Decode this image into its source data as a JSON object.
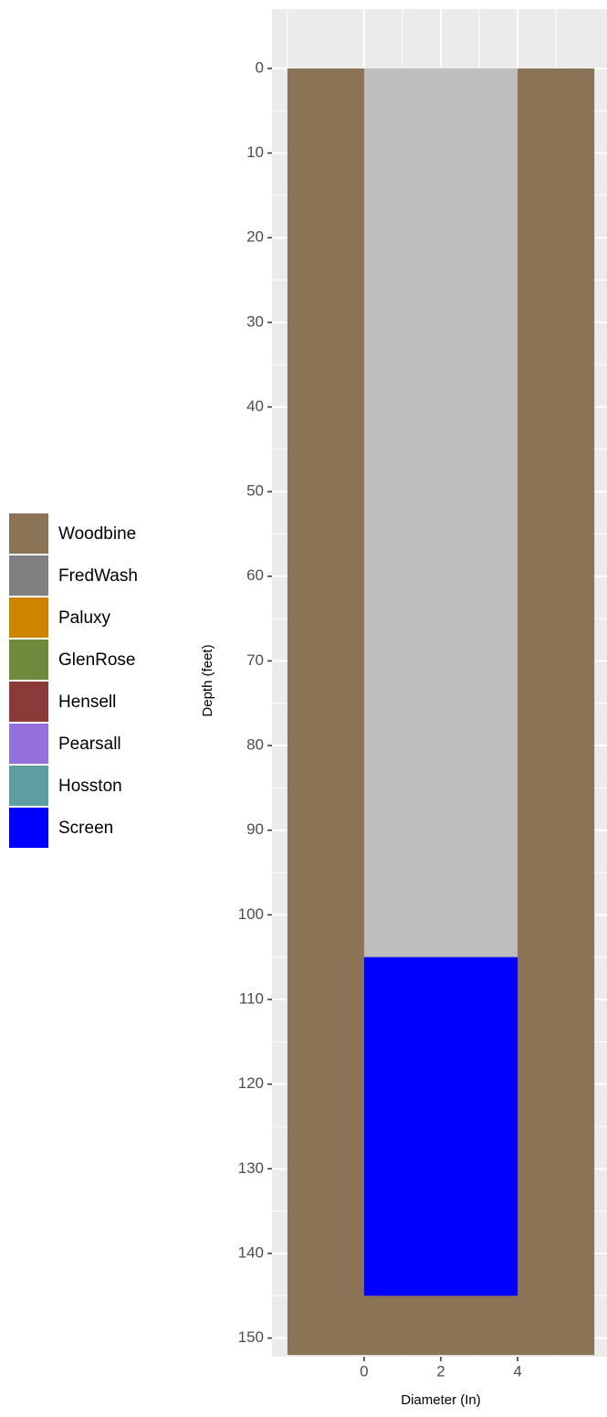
{
  "chart_data": {
    "type": "rect",
    "x_label": "Diameter (In)",
    "y_label": "Depth (feet)",
    "xlim": [
      -2.4,
      6.33
    ],
    "xticks": [
      0,
      2,
      4
    ],
    "xminor": [
      -2,
      1,
      3,
      5
    ],
    "ylim": [
      -7,
      152.2
    ],
    "y_reversed": true,
    "yticks": [
      0,
      10,
      20,
      30,
      40,
      50,
      60,
      70,
      80,
      90,
      100,
      110,
      120,
      130,
      140,
      150
    ],
    "yminor": [
      5,
      15,
      25,
      35,
      45,
      55,
      65,
      75,
      85,
      95,
      105,
      115,
      125,
      135,
      145
    ],
    "grid": true,
    "rects": [
      {
        "xmin": -2,
        "xmax": 6,
        "ymin": 0,
        "ymax": 152,
        "color": "#8B7355"
      },
      {
        "xmin": 0,
        "xmax": 4,
        "ymin": 0,
        "ymax": 105,
        "color": "#BEBEBE"
      },
      {
        "xmin": 0,
        "xmax": 4,
        "ymin": 105,
        "ymax": 145,
        "color": "#0000FF"
      }
    ],
    "legend": [
      {
        "name": "Woodbine",
        "color": "#8B7355"
      },
      {
        "name": "FredWash",
        "color": "#808080"
      },
      {
        "name": "Paluxy",
        "color": "#CD8500"
      },
      {
        "name": "GlenRose",
        "color": "#6E8B3D"
      },
      {
        "name": "Hensell",
        "color": "#8B3A3A"
      },
      {
        "name": "Pearsall",
        "color": "#9370DB"
      },
      {
        "name": "Hosston",
        "color": "#5F9EA0"
      },
      {
        "name": "Screen",
        "color": "#0000FF"
      }
    ],
    "legend_position": "left"
  }
}
